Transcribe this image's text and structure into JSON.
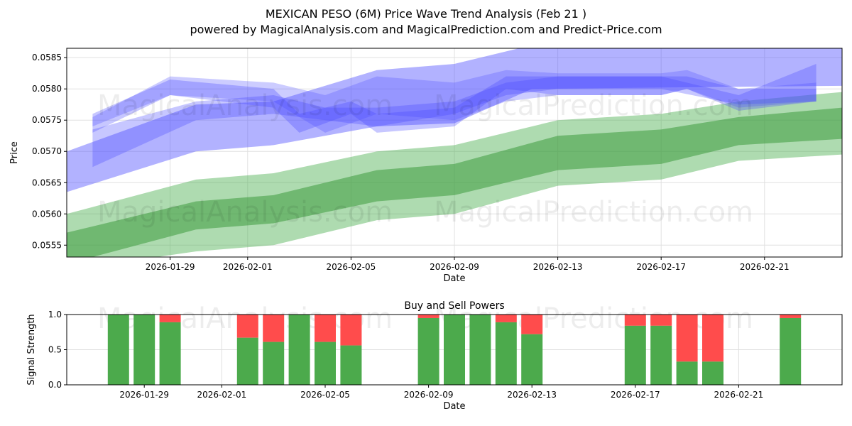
{
  "title": "MEXICAN PESO (6M) Price Wave Trend Analysis (Feb 21 )",
  "subtitle": "powered by MagicalAnalysis.com and MagicalPrediction.com and Predict-Price.com",
  "watermarks": [
    "MagicalAnalysis.com",
    "MagicalPrediction.com"
  ],
  "chart_data": [
    {
      "type": "area",
      "title": "",
      "xlabel": "Date",
      "ylabel": "Price",
      "ylim": [
        0.05531,
        0.05865
      ],
      "xlim": [
        "2026-01-25",
        "2026-02-24"
      ],
      "grid": true,
      "xticks": [
        "2026-01-29",
        "2026-02-01",
        "2026-02-05",
        "2026-02-09",
        "2026-02-13",
        "2026-02-17",
        "2026-02-21"
      ],
      "yticks": [
        "0.0555",
        "0.0560",
        "0.0565",
        "0.0570",
        "0.0575",
        "0.0580",
        "0.0585"
      ],
      "bands": [
        {
          "name": "green-outer",
          "color": "#4caf50",
          "opacity": 0.45,
          "dates": [
            "2026-01-25",
            "2026-01-30",
            "2026-02-02",
            "2026-02-06",
            "2026-02-09",
            "2026-02-13",
            "2026-02-17",
            "2026-02-20",
            "2026-02-24"
          ],
          "upper": [
            0.056,
            0.05655,
            0.05665,
            0.057,
            0.0571,
            0.0575,
            0.0576,
            0.0578,
            0.05795
          ],
          "lower": [
            0.0551,
            0.0554,
            0.0555,
            0.0559,
            0.056,
            0.05645,
            0.05655,
            0.05685,
            0.05695
          ]
        },
        {
          "name": "green-inner",
          "color": "#3e9a3e",
          "opacity": 0.55,
          "dates": [
            "2026-01-25",
            "2026-01-30",
            "2026-02-02",
            "2026-02-06",
            "2026-02-09",
            "2026-02-13",
            "2026-02-17",
            "2026-02-20",
            "2026-02-24"
          ],
          "upper": [
            0.0557,
            0.0562,
            0.0563,
            0.0567,
            0.0568,
            0.05725,
            0.05735,
            0.05755,
            0.0577
          ],
          "lower": [
            0.0552,
            0.05575,
            0.05585,
            0.0562,
            0.0563,
            0.0567,
            0.0568,
            0.0571,
            0.0572
          ]
        },
        {
          "name": "blue-wide",
          "color": "#5555ff",
          "opacity": 0.45,
          "dates": [
            "2026-01-25",
            "2026-01-30",
            "2026-02-02",
            "2026-02-06",
            "2026-02-09",
            "2026-02-12",
            "2026-02-24"
          ],
          "upper": [
            0.057,
            0.05775,
            0.0578,
            0.0583,
            0.0584,
            0.0587,
            0.0587
          ],
          "lower": [
            0.05635,
            0.057,
            0.0571,
            0.0574,
            0.05745,
            0.058,
            0.05805
          ]
        },
        {
          "name": "blue-mid",
          "color": "#5555ff",
          "opacity": 0.3,
          "dates": [
            "2026-01-26",
            "2026-01-29",
            "2026-02-02",
            "2026-02-04",
            "2026-02-06",
            "2026-02-09",
            "2026-02-11",
            "2026-02-13",
            "2026-02-17",
            "2026-02-18",
            "2026-02-20",
            "2026-02-23"
          ],
          "upper": [
            0.05755,
            0.0582,
            0.0581,
            0.0579,
            0.0582,
            0.0581,
            0.0583,
            0.05825,
            0.05825,
            0.0583,
            0.058,
            0.0581
          ],
          "lower": [
            0.0574,
            0.0579,
            0.0578,
            0.0573,
            0.0576,
            0.0575,
            0.0578,
            0.0579,
            0.0579,
            0.058,
            0.0577,
            0.0578
          ]
        },
        {
          "name": "blue-low",
          "color": "#4444ff",
          "opacity": 0.3,
          "dates": [
            "2026-01-26",
            "2026-01-30",
            "2026-02-02",
            "2026-02-04",
            "2026-02-06",
            "2026-02-09",
            "2026-02-11",
            "2026-02-13",
            "2026-02-17",
            "2026-02-20",
            "2026-02-23"
          ],
          "upper": [
            0.05735,
            0.0578,
            0.0579,
            0.0577,
            0.0577,
            0.0578,
            0.0581,
            0.0582,
            0.0582,
            0.0579,
            0.0584
          ],
          "lower": [
            0.05675,
            0.0575,
            0.0576,
            0.0575,
            0.0574,
            0.0576,
            0.0579,
            0.058,
            0.058,
            0.05775,
            0.0578
          ]
        },
        {
          "name": "blue-wobble",
          "color": "#4444ff",
          "opacity": 0.3,
          "dates": [
            "2026-01-26",
            "2026-01-29",
            "2026-02-02",
            "2026-02-03",
            "2026-02-05",
            "2026-02-06",
            "2026-02-09",
            "2026-02-11",
            "2026-02-13",
            "2026-02-17",
            "2026-02-18",
            "2026-02-20",
            "2026-02-23"
          ],
          "upper": [
            0.0576,
            0.05815,
            0.058,
            0.0576,
            0.0578,
            0.0576,
            0.0577,
            0.0582,
            0.0582,
            0.0582,
            0.0582,
            0.058,
            0.058
          ],
          "lower": [
            0.0573,
            0.0579,
            0.0577,
            0.0573,
            0.0576,
            0.0573,
            0.0574,
            0.058,
            0.0579,
            0.0579,
            0.058,
            0.05765,
            0.0578
          ]
        }
      ]
    },
    {
      "type": "bar",
      "title": "Buy and Sell Powers",
      "xlabel": "Date",
      "ylabel": "Signal Strength",
      "ylim": [
        0,
        1
      ],
      "xlim": [
        "2026-01-26",
        "2026-02-25"
      ],
      "yticks": [
        "0.0",
        "0.5",
        "1.0"
      ],
      "xticks": [
        "2026-01-29",
        "2026-02-01",
        "2026-02-05",
        "2026-02-09",
        "2026-02-13",
        "2026-02-17",
        "2026-02-21"
      ],
      "buy_color": "#4caa4c",
      "sell_color": "#ff4c4c",
      "dates": [
        "2026-01-28",
        "2026-01-29",
        "2026-01-30",
        "2026-02-02",
        "2026-02-03",
        "2026-02-04",
        "2026-02-05",
        "2026-02-06",
        "2026-02-09",
        "2026-02-10",
        "2026-02-11",
        "2026-02-12",
        "2026-02-13",
        "2026-02-17",
        "2026-02-18",
        "2026-02-19",
        "2026-02-20",
        "2026-02-23"
      ],
      "buy": [
        1.0,
        1.0,
        0.89,
        0.67,
        0.61,
        1.0,
        0.61,
        0.56,
        0.95,
        1.0,
        1.0,
        0.89,
        0.72,
        0.84,
        0.84,
        0.33,
        0.33,
        0.95
      ]
    }
  ]
}
